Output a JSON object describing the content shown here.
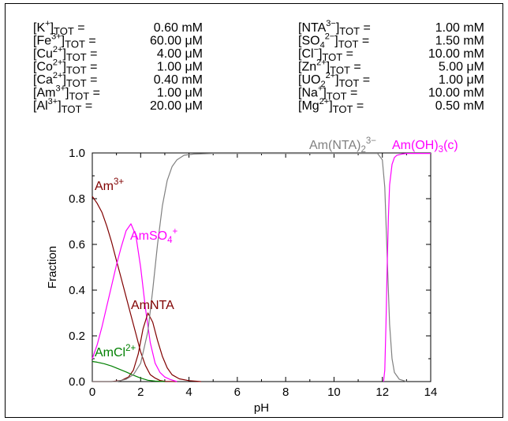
{
  "chart_data": {
    "type": "line",
    "xlabel": "pH",
    "ylabel": "Fraction",
    "xlim": [
      0,
      14
    ],
    "ylim": [
      0,
      1.0
    ],
    "x_ticks": [
      "0",
      "2",
      "4",
      "6",
      "8",
      "10",
      "12",
      "14"
    ],
    "y_ticks": [
      "0.0",
      "0.2",
      "0.4",
      "0.6",
      "0.8",
      "1.0"
    ],
    "grid": false,
    "concentrations_left": [
      {
        "species": "K",
        "charge": "+",
        "value": "0.60 mM"
      },
      {
        "species": "Fe",
        "charge": "3+",
        "value": "60.00 μM"
      },
      {
        "species": "Cu",
        "charge": "2+",
        "value": "4.00 μM"
      },
      {
        "species": "Co",
        "charge": "2+",
        "value": "1.00 μM"
      },
      {
        "species": "Ca",
        "charge": "2+",
        "value": "0.40 mM"
      },
      {
        "species": "Am",
        "charge": "3+",
        "value": "1.00 μM"
      },
      {
        "species": "Al",
        "charge": "3+",
        "value": "20.00 μM"
      }
    ],
    "concentrations_right": [
      {
        "species": "NTA",
        "charge": "3−",
        "value": "1.00 mM"
      },
      {
        "species": "SO",
        "sub": "4",
        "charge": "2−",
        "value": "1.50 mM"
      },
      {
        "species": "Cl",
        "charge": "−",
        "value": "10.00 mM"
      },
      {
        "species": "Zn",
        "charge": "2+",
        "value": "5.00 μM"
      },
      {
        "species": "UO",
        "sub": "2",
        "charge": "2+",
        "value": "1.00 μM"
      },
      {
        "species": "Na",
        "charge": "+",
        "value": "10.00 mM"
      },
      {
        "species": "Mg",
        "charge": "2+",
        "value": "0.50 mM"
      }
    ],
    "tot_label": "TOT",
    "series": [
      {
        "name": "Am3+",
        "label_main": "Am",
        "label_sup": "3+",
        "color": "#800000",
        "x": [
          0,
          0.2,
          0.4,
          0.6,
          0.8,
          1.0,
          1.2,
          1.4,
          1.6,
          1.8,
          2.0,
          2.2,
          2.4,
          2.6,
          2.8,
          3.0,
          3.5
        ],
        "y": [
          0.81,
          0.78,
          0.74,
          0.68,
          0.61,
          0.53,
          0.45,
          0.37,
          0.29,
          0.21,
          0.13,
          0.07,
          0.03,
          0.015,
          0.005,
          0.001,
          0
        ]
      },
      {
        "name": "AmSO4+",
        "label_main": "AmSO",
        "label_sub": "4",
        "label_sup": "+",
        "color": "#ff00ff",
        "x": [
          0,
          0.2,
          0.4,
          0.6,
          0.8,
          1.0,
          1.2,
          1.4,
          1.6,
          1.8,
          2.0,
          2.2,
          2.4,
          2.6,
          2.8,
          3.0,
          3.2,
          3.5
        ],
        "y": [
          0.1,
          0.16,
          0.24,
          0.33,
          0.42,
          0.51,
          0.59,
          0.66,
          0.69,
          0.64,
          0.5,
          0.32,
          0.17,
          0.08,
          0.04,
          0.02,
          0.01,
          0
        ]
      },
      {
        "name": "AmNTA",
        "label_main": "AmNTA",
        "color": "#800000",
        "x": [
          0,
          0.8,
          1.2,
          1.5,
          1.7,
          1.9,
          2.1,
          2.3,
          2.5,
          2.7,
          2.9,
          3.1,
          3.3,
          3.6,
          4.0,
          4.5
        ],
        "y": [
          0,
          0,
          0.005,
          0.02,
          0.05,
          0.12,
          0.23,
          0.3,
          0.26,
          0.18,
          0.11,
          0.06,
          0.03,
          0.012,
          0.004,
          0
        ]
      },
      {
        "name": "AmCl2+",
        "label_main": "AmCl",
        "label_sup": "2+",
        "color": "#008000",
        "x": [
          0,
          0.2,
          0.5,
          0.8,
          1.1,
          1.4,
          1.7,
          2.0,
          2.3,
          2.6,
          3.0
        ],
        "y": [
          0.088,
          0.085,
          0.078,
          0.068,
          0.055,
          0.042,
          0.028,
          0.015,
          0.006,
          0.002,
          0
        ]
      },
      {
        "name": "Am(NTA)2 3-",
        "label_main": "Am(NTA)",
        "label_sub": "2",
        "label_sup": "3−",
        "color": "#808080",
        "x": [
          0,
          1.0,
          1.4,
          1.7,
          2.0,
          2.3,
          2.5,
          2.7,
          2.9,
          3.1,
          3.3,
          3.5,
          3.8,
          4.2,
          5,
          6,
          8,
          10,
          11.8,
          12.0,
          12.1,
          12.2,
          12.3,
          12.4,
          12.5,
          12.7,
          13.0
        ],
        "y": [
          0,
          0,
          0.01,
          0.03,
          0.08,
          0.22,
          0.4,
          0.6,
          0.77,
          0.88,
          0.94,
          0.97,
          0.99,
          0.995,
          0.998,
          0.998,
          0.998,
          0.998,
          0.998,
          0.97,
          0.85,
          0.55,
          0.25,
          0.1,
          0.04,
          0.01,
          0
        ]
      },
      {
        "name": "Am(OH)3(c)",
        "label_main": "Am(OH)",
        "label_sub": "3",
        "label_tail": "(c)",
        "color": "#ff00ff",
        "x": [
          12.05,
          12.1,
          12.15,
          12.2,
          12.25,
          12.3,
          12.4,
          12.5,
          12.6,
          12.8,
          13.0,
          13.5,
          14.0
        ],
        "y": [
          0,
          0.05,
          0.25,
          0.5,
          0.72,
          0.86,
          0.95,
          0.98,
          0.99,
          0.995,
          0.998,
          0.998,
          0.998
        ]
      }
    ]
  }
}
